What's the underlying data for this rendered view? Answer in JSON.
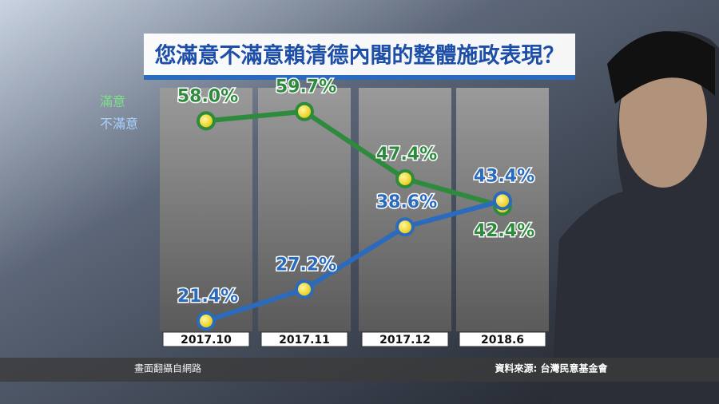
{
  "chart_data": {
    "type": "line",
    "title": "您滿意不滿意賴清德內閣的整體施政表現？",
    "categories": [
      "2017.10",
      "2017.11",
      "2017.12",
      "2018.6"
    ],
    "series": [
      {
        "name": "滿意",
        "color": "#2e8b3e",
        "values": [
          58.0,
          59.7,
          47.4,
          42.4
        ],
        "value_labels": [
          "58.0%",
          "59.7%",
          "47.4%",
          "42.4%"
        ]
      },
      {
        "name": "不滿意",
        "color": "#2a6bbd",
        "values": [
          21.4,
          27.2,
          38.6,
          43.4
        ],
        "value_labels": [
          "21.4%",
          "27.2%",
          "38.6%",
          "43.4%"
        ]
      }
    ],
    "ylim": [
      19.5,
      65.5
    ],
    "grid": false,
    "footer_left": "畫面翻攝自網路",
    "footer_right": "資料來源: 台灣民意基金會"
  }
}
